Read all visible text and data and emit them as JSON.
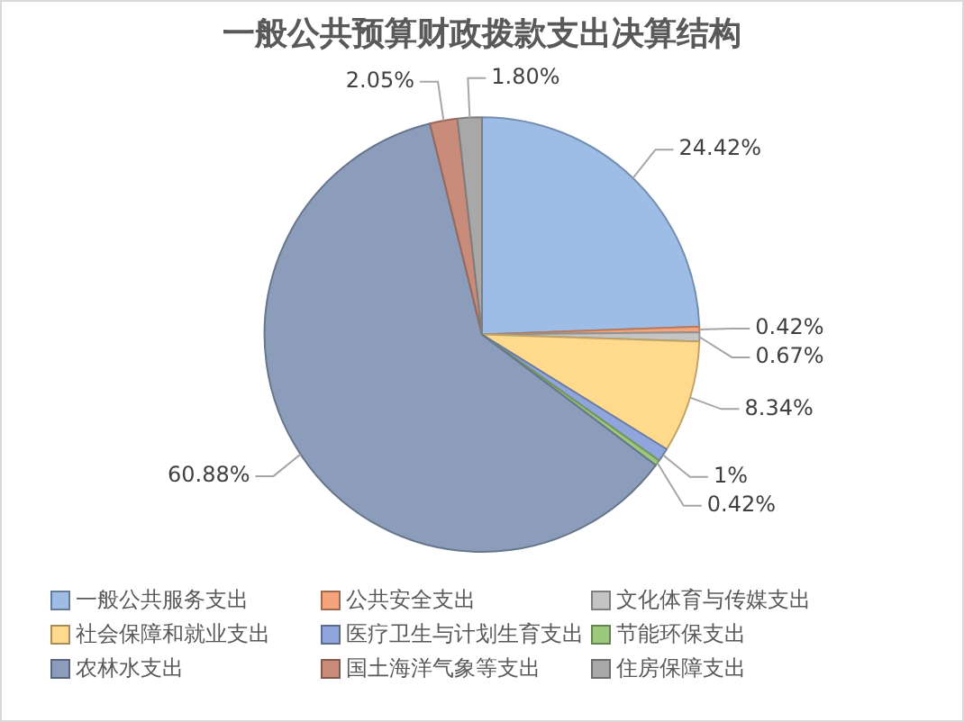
{
  "chart_data": {
    "type": "pie",
    "title": "一般公共预算财政拨款支出决算结构",
    "categories": [
      "一般公共服务支出",
      "公共安全支出",
      "文化体育与传媒支出",
      "社会保障和就业支出",
      "医疗卫生与计划生育支出",
      "节能环保支出",
      "农林水支出",
      "国土海洋气象等支出",
      "住房保障支出"
    ],
    "values": [
      24.42,
      0.42,
      0.67,
      8.34,
      1,
      0.42,
      60.88,
      2.05,
      1.8
    ],
    "value_labels": [
      "24.42%",
      "0.42%",
      "0.67%",
      "8.34%",
      "1%",
      "0.42%",
      "60.88%",
      "2.05%",
      "1.80%"
    ],
    "colors": [
      "#9dbde6",
      "#f6a47c",
      "#c4c4c4",
      "#ffd98c",
      "#8fa5dc",
      "#9cc97c",
      "#8b9dbb",
      "#c98b7a",
      "#a8a8a8"
    ],
    "legend": "bottom"
  }
}
